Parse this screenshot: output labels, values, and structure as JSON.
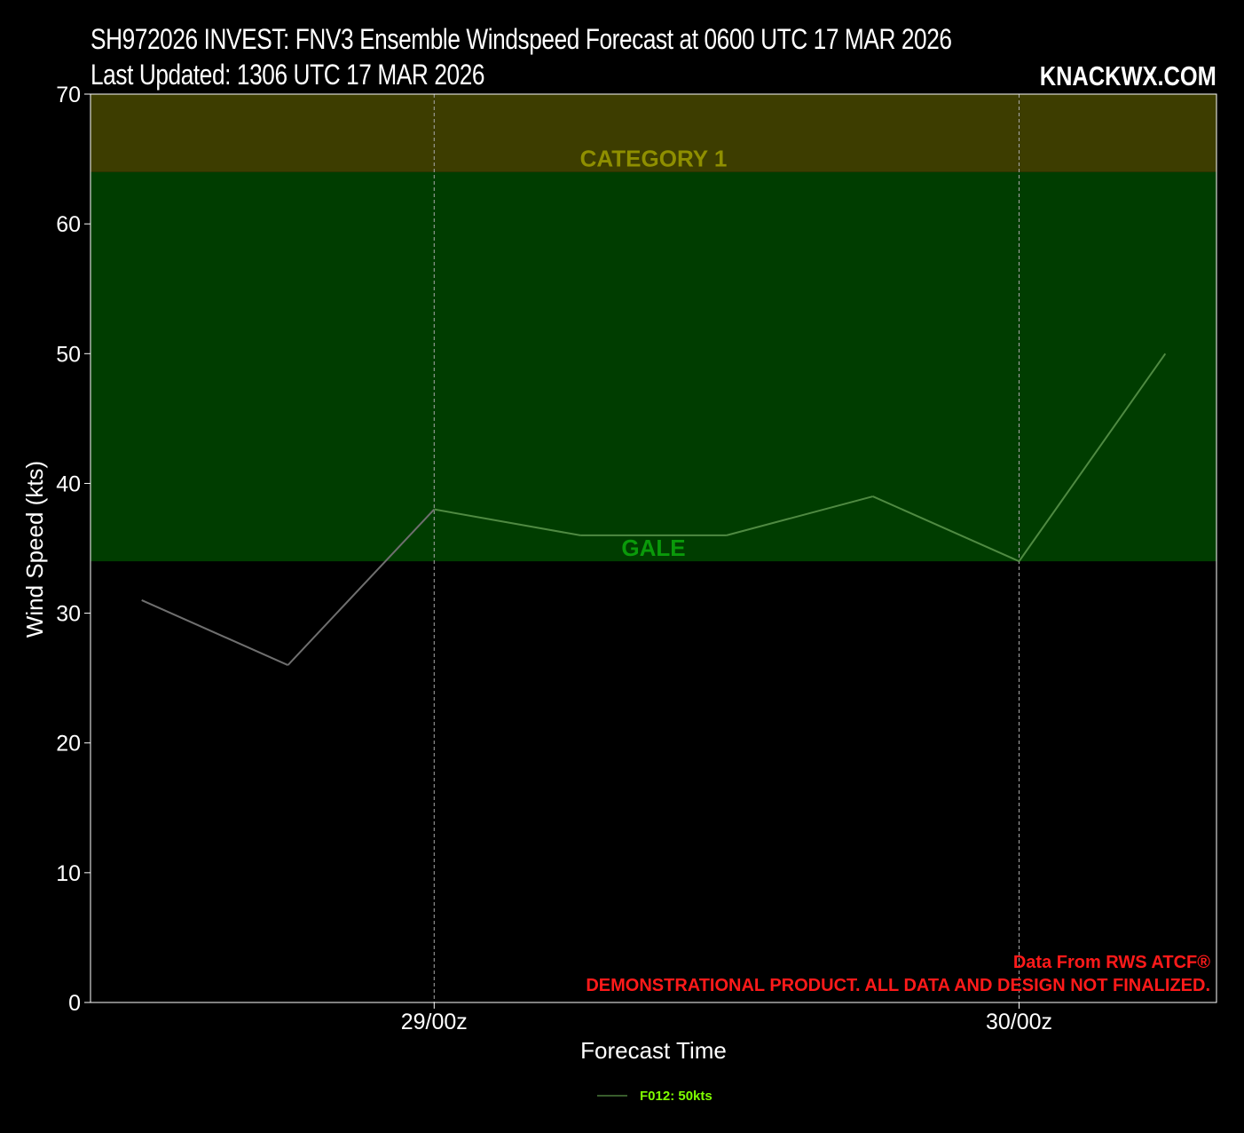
{
  "header": {
    "title": "SH972026 INVEST: FNV3 Ensemble Windspeed Forecast at 0600 UTC 17 MAR 2026",
    "subtitle": "Last Updated: 1306 UTC 17 MAR 2026",
    "brand": "KNACKWX.COM"
  },
  "chart_data": {
    "type": "line",
    "title": "SH972026 INVEST: FNV3 Ensemble Windspeed Forecast at 0600 UTC 17 MAR 2026",
    "subtitle": "Last Updated: 1306 UTC 17 MAR 2026",
    "xlabel": "Forecast Time",
    "ylabel": "Wind Speed (kts)",
    "ylim": [
      0,
      70
    ],
    "yticks": [
      0,
      10,
      20,
      30,
      40,
      50,
      60,
      70
    ],
    "xlim": [
      -0.35,
      7.35
    ],
    "xticks": [
      {
        "x": 2,
        "label": "29/00z"
      },
      {
        "x": 6,
        "label": "30/00z"
      }
    ],
    "grid": "vertical dashed at x ticks",
    "bands": [
      {
        "label": "GALE",
        "from": 34,
        "to": 64,
        "color": "#003d00",
        "label_color": "#0a9a0a"
      },
      {
        "label": "CATEGORY 1",
        "from": 64,
        "to": 70,
        "color": "#3d3d00",
        "label_color": "#8f8f00"
      }
    ],
    "series": [
      {
        "name": "F012: 50kts",
        "x": [
          0,
          1,
          2,
          3,
          4,
          5,
          6,
          7
        ],
        "values": [
          31,
          26,
          38,
          36,
          36,
          39,
          34,
          50
        ],
        "color": "#4a7a3a"
      }
    ],
    "legend": {
      "position": "bottom-center",
      "entries": [
        "F012: 50kts"
      ]
    },
    "annotations": [
      "Data From RWS ATCF®",
      "DEMONSTRATIONAL PRODUCT. ALL DATA AND DESIGN NOT FINALIZED."
    ]
  }
}
